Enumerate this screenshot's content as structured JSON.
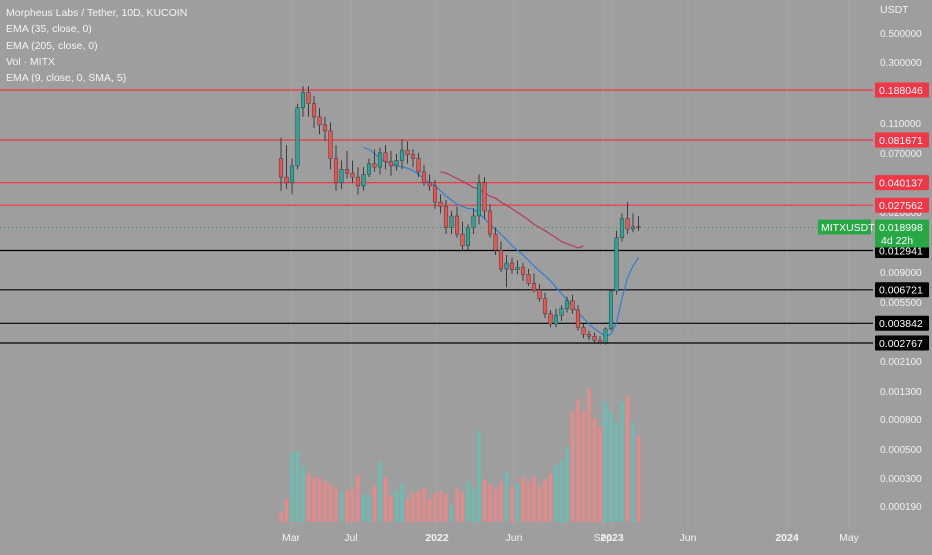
{
  "legend": {
    "title": "Morpheus Labs / Tether, 10D, KUCOIN",
    "ema35": "EMA (35, close, 0)",
    "ema205": "EMA (205, close, 0)",
    "vol": "Vol · MITX",
    "vol_ema": "EMA (9, close, 0, SMA, 5)"
  },
  "price_axis": {
    "title": "USDT",
    "ticks": [
      "0.500000",
      "0.300000",
      "0.110000",
      "0.070000",
      "0.020000",
      "0.009000",
      "0.005500",
      "0.002100",
      "0.001300",
      "0.000800",
      "0.000500",
      "0.000300",
      "0.000190"
    ]
  },
  "time_axis": {
    "ticks": [
      {
        "label": "Mar",
        "bold": false
      },
      {
        "label": "Jul",
        "bold": false
      },
      {
        "label": "2022",
        "bold": true
      },
      {
        "label": "Jun",
        "bold": false
      },
      {
        "label": "Sep",
        "bold": false
      },
      {
        "label": "2023",
        "bold": true
      },
      {
        "label": "Jun",
        "bold": false
      },
      {
        "label": "2024",
        "bold": true
      },
      {
        "label": "May",
        "bold": false
      }
    ]
  },
  "colors": {
    "background": "#9e9e9e",
    "up": "#26a69a",
    "down": "#ef5350",
    "vol_up": "#6cbcb3",
    "vol_down": "#e58a88",
    "resistance": "#f23645",
    "support": "#000000",
    "ema35": "#2f7fd6",
    "ema205": "#b83a5e",
    "price_badge": "#27a844"
  },
  "chart_data": {
    "type": "candlestick",
    "title": "Morpheus Labs / Tether, 10D, KUCOIN",
    "symbol": "MITXUSDT",
    "interval": "10D",
    "scale": "log",
    "ylabel": "USDT",
    "ylim": [
      0.0021,
      0.5
    ],
    "last_price": "0.018998",
    "countdown": "4d 22h",
    "levels": [
      {
        "price": 0.188046,
        "label": "0.188046",
        "kind": "resistance"
      },
      {
        "price": 0.081671,
        "label": "0.081671",
        "kind": "resistance"
      },
      {
        "price": 0.040137,
        "label": "0.040137",
        "kind": "resistance"
      },
      {
        "price": 0.027562,
        "label": "0.027562",
        "kind": "resistance"
      },
      {
        "price": 0.012941,
        "label": "0.012941",
        "kind": "support"
      },
      {
        "price": 0.006721,
        "label": "0.006721",
        "kind": "support"
      },
      {
        "price": 0.003842,
        "label": "0.003842",
        "kind": "support"
      },
      {
        "price": 0.002767,
        "label": "0.002767",
        "kind": "support"
      }
    ],
    "candles": [
      {
        "o": 0.06,
        "h": 0.085,
        "l": 0.035,
        "c": 0.044
      },
      {
        "o": 0.044,
        "h": 0.075,
        "l": 0.036,
        "c": 0.04
      },
      {
        "o": 0.04,
        "h": 0.06,
        "l": 0.033,
        "c": 0.053
      },
      {
        "o": 0.053,
        "h": 0.15,
        "l": 0.05,
        "c": 0.14
      },
      {
        "o": 0.14,
        "h": 0.2,
        "l": 0.12,
        "c": 0.18
      },
      {
        "o": 0.18,
        "h": 0.2,
        "l": 0.12,
        "c": 0.15
      },
      {
        "o": 0.15,
        "h": 0.17,
        "l": 0.1,
        "c": 0.12
      },
      {
        "o": 0.12,
        "h": 0.14,
        "l": 0.09,
        "c": 0.105
      },
      {
        "o": 0.105,
        "h": 0.12,
        "l": 0.08,
        "c": 0.095
      },
      {
        "o": 0.095,
        "h": 0.11,
        "l": 0.05,
        "c": 0.06
      },
      {
        "o": 0.06,
        "h": 0.075,
        "l": 0.035,
        "c": 0.04
      },
      {
        "o": 0.04,
        "h": 0.058,
        "l": 0.036,
        "c": 0.05
      },
      {
        "o": 0.05,
        "h": 0.068,
        "l": 0.043,
        "c": 0.047
      },
      {
        "o": 0.047,
        "h": 0.058,
        "l": 0.04,
        "c": 0.044
      },
      {
        "o": 0.044,
        "h": 0.052,
        "l": 0.033,
        "c": 0.038
      },
      {
        "o": 0.038,
        "h": 0.052,
        "l": 0.035,
        "c": 0.046
      },
      {
        "o": 0.046,
        "h": 0.06,
        "l": 0.044,
        "c": 0.055
      },
      {
        "o": 0.055,
        "h": 0.07,
        "l": 0.048,
        "c": 0.052
      },
      {
        "o": 0.052,
        "h": 0.072,
        "l": 0.046,
        "c": 0.066
      },
      {
        "o": 0.066,
        "h": 0.075,
        "l": 0.05,
        "c": 0.057
      },
      {
        "o": 0.057,
        "h": 0.068,
        "l": 0.045,
        "c": 0.053
      },
      {
        "o": 0.053,
        "h": 0.065,
        "l": 0.049,
        "c": 0.058
      },
      {
        "o": 0.058,
        "h": 0.083,
        "l": 0.05,
        "c": 0.069
      },
      {
        "o": 0.069,
        "h": 0.08,
        "l": 0.055,
        "c": 0.064
      },
      {
        "o": 0.064,
        "h": 0.07,
        "l": 0.052,
        "c": 0.06
      },
      {
        "o": 0.06,
        "h": 0.066,
        "l": 0.044,
        "c": 0.048
      },
      {
        "o": 0.048,
        "h": 0.054,
        "l": 0.038,
        "c": 0.04
      },
      {
        "o": 0.04,
        "h": 0.046,
        "l": 0.035,
        "c": 0.038
      },
      {
        "o": 0.038,
        "h": 0.042,
        "l": 0.026,
        "c": 0.029
      },
      {
        "o": 0.029,
        "h": 0.033,
        "l": 0.024,
        "c": 0.027
      },
      {
        "o": 0.027,
        "h": 0.03,
        "l": 0.017,
        "c": 0.019
      },
      {
        "o": 0.019,
        "h": 0.025,
        "l": 0.017,
        "c": 0.023
      },
      {
        "o": 0.023,
        "h": 0.027,
        "l": 0.016,
        "c": 0.017
      },
      {
        "o": 0.017,
        "h": 0.021,
        "l": 0.013,
        "c": 0.014
      },
      {
        "o": 0.014,
        "h": 0.02,
        "l": 0.013,
        "c": 0.019
      },
      {
        "o": 0.019,
        "h": 0.026,
        "l": 0.017,
        "c": 0.023
      },
      {
        "o": 0.023,
        "h": 0.046,
        "l": 0.02,
        "c": 0.04
      },
      {
        "o": 0.04,
        "h": 0.044,
        "l": 0.022,
        "c": 0.025
      },
      {
        "o": 0.025,
        "h": 0.028,
        "l": 0.016,
        "c": 0.017
      },
      {
        "o": 0.017,
        "h": 0.019,
        "l": 0.012,
        "c": 0.013
      },
      {
        "o": 0.013,
        "h": 0.015,
        "l": 0.009,
        "c": 0.0095
      },
      {
        "o": 0.0095,
        "h": 0.012,
        "l": 0.007,
        "c": 0.0105
      },
      {
        "o": 0.0105,
        "h": 0.0115,
        "l": 0.0088,
        "c": 0.0094
      },
      {
        "o": 0.0094,
        "h": 0.011,
        "l": 0.0087,
        "c": 0.0098
      },
      {
        "o": 0.0098,
        "h": 0.0105,
        "l": 0.0078,
        "c": 0.0087
      },
      {
        "o": 0.0087,
        "h": 0.0095,
        "l": 0.0072,
        "c": 0.0075
      },
      {
        "o": 0.0075,
        "h": 0.0088,
        "l": 0.0064,
        "c": 0.0067
      },
      {
        "o": 0.0067,
        "h": 0.0074,
        "l": 0.0055,
        "c": 0.0058
      },
      {
        "o": 0.0058,
        "h": 0.0064,
        "l": 0.0042,
        "c": 0.0045
      },
      {
        "o": 0.0045,
        "h": 0.0048,
        "l": 0.0036,
        "c": 0.0038
      },
      {
        "o": 0.0038,
        "h": 0.0049,
        "l": 0.0036,
        "c": 0.0044
      },
      {
        "o": 0.0044,
        "h": 0.0052,
        "l": 0.004,
        "c": 0.0049
      },
      {
        "o": 0.0049,
        "h": 0.006,
        "l": 0.0046,
        "c": 0.0056
      },
      {
        "o": 0.0056,
        "h": 0.0062,
        "l": 0.0045,
        "c": 0.0048
      },
      {
        "o": 0.0048,
        "h": 0.0052,
        "l": 0.0034,
        "c": 0.0036
      },
      {
        "o": 0.0036,
        "h": 0.0038,
        "l": 0.003,
        "c": 0.0032
      },
      {
        "o": 0.0032,
        "h": 0.0034,
        "l": 0.0029,
        "c": 0.0031
      },
      {
        "o": 0.0031,
        "h": 0.0033,
        "l": 0.0028,
        "c": 0.0029
      },
      {
        "o": 0.0029,
        "h": 0.0031,
        "l": 0.0027,
        "c": 0.0028
      },
      {
        "o": 0.0028,
        "h": 0.0036,
        "l": 0.0027,
        "c": 0.0035
      },
      {
        "o": 0.0035,
        "h": 0.0068,
        "l": 0.0034,
        "c": 0.0066
      },
      {
        "o": 0.0066,
        "h": 0.018,
        "l": 0.0062,
        "c": 0.016
      },
      {
        "o": 0.016,
        "h": 0.024,
        "l": 0.015,
        "c": 0.022
      },
      {
        "o": 0.022,
        "h": 0.029,
        "l": 0.017,
        "c": 0.0185
      },
      {
        "o": 0.0185,
        "h": 0.024,
        "l": 0.0175,
        "c": 0.0192
      },
      {
        "o": 0.0192,
        "h": 0.023,
        "l": 0.018,
        "c": 0.019
      }
    ],
    "volumes": [
      0.00017,
      0.00021,
      0.00045,
      0.00046,
      0.00036,
      0.00032,
      0.0003,
      0.0003,
      0.00028,
      0.00027,
      0.00025,
      0.00024,
      0.00024,
      0.00025,
      0.00031,
      0.00023,
      0.00022,
      0.00026,
      0.00039,
      0.0003,
      0.00022,
      0.00024,
      0.00027,
      0.00021,
      0.00023,
      0.00024,
      0.00025,
      0.00021,
      0.00023,
      0.00024,
      0.00023,
      0.00019,
      0.00025,
      0.00023,
      0.00028,
      0.00025,
      0.00065,
      0.00029,
      0.00027,
      0.00025,
      0.00028,
      0.00033,
      0.00026,
      0.00027,
      0.0003,
      0.00028,
      0.0003,
      0.00026,
      0.00029,
      0.00032,
      0.00037,
      0.0004,
      0.0005,
      0.0009,
      0.0011,
      0.0009,
      0.0013,
      0.0008,
      0.0007,
      0.00105,
      0.0009,
      0.00075,
      0.00105,
      0.00115,
      0.00075,
      0.0006
    ],
    "ema35_values": [
      0.072,
      0.07,
      0.065,
      0.06,
      0.057,
      0.055,
      0.053,
      0.052,
      0.051,
      0.049,
      0.046,
      0.043,
      0.04,
      0.038,
      0.035,
      0.032,
      0.03,
      0.028,
      0.027,
      0.026,
      0.026,
      0.024,
      0.022,
      0.02,
      0.0185,
      0.017,
      0.0155,
      0.014,
      0.013,
      0.012,
      0.011,
      0.01,
      0.0092,
      0.0085,
      0.0078,
      0.007,
      0.0063,
      0.0057,
      0.0051,
      0.0046,
      0.0042,
      0.0038,
      0.0035,
      0.0033,
      0.0031,
      0.0032,
      0.0039,
      0.0058,
      0.0082,
      0.01,
      0.0115
    ],
    "ema205_values": [
      0.048,
      0.047,
      0.045,
      0.043,
      0.041,
      0.039,
      0.037,
      0.036,
      0.034,
      0.032,
      0.031,
      0.029,
      0.0275,
      0.026,
      0.0245,
      0.023,
      0.0215,
      0.02,
      0.019,
      0.018,
      0.017,
      0.016,
      0.015,
      0.0145,
      0.014,
      0.0135,
      0.014
    ]
  }
}
